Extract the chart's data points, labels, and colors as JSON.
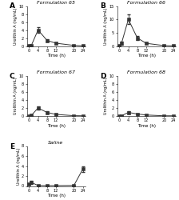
{
  "panels": [
    {
      "label": "A",
      "title": "Formulation 65",
      "x": [
        0,
        1,
        4,
        8,
        12,
        20,
        24
      ],
      "y": [
        0.05,
        0.15,
        4.0,
        1.4,
        0.7,
        0.15,
        0.05
      ],
      "yerr": [
        0.03,
        0.08,
        0.7,
        0.35,
        0.2,
        0.05,
        0.03
      ],
      "ylim": [
        0,
        10
      ],
      "yticks": [
        0,
        2,
        4,
        6,
        8,
        10
      ]
    },
    {
      "label": "B",
      "title": "Formulation 66",
      "x": [
        0,
        1,
        4,
        8,
        12,
        20,
        24
      ],
      "y": [
        0.1,
        1.2,
        10.0,
        3.0,
        1.0,
        0.15,
        0.05
      ],
      "yerr": [
        0.05,
        0.6,
        1.8,
        0.7,
        0.25,
        0.05,
        0.03
      ],
      "ylim": [
        0,
        15
      ],
      "yticks": [
        0,
        5,
        10,
        15
      ]
    },
    {
      "label": "C",
      "title": "Formulation 67",
      "x": [
        0,
        1,
        4,
        8,
        12,
        20,
        24
      ],
      "y": [
        0.05,
        0.15,
        2.0,
        0.9,
        0.4,
        0.08,
        0.05
      ],
      "yerr": [
        0.02,
        0.08,
        0.35,
        0.25,
        0.12,
        0.04,
        0.02
      ],
      "ylim": [
        0,
        10
      ],
      "yticks": [
        0,
        2,
        4,
        6,
        8,
        10
      ]
    },
    {
      "label": "D",
      "title": "Formulation 68",
      "x": [
        0,
        1,
        4,
        8,
        12,
        20,
        24
      ],
      "y": [
        0.05,
        0.08,
        0.9,
        0.5,
        0.25,
        0.05,
        0.05
      ],
      "yerr": [
        0.02,
        0.04,
        0.25,
        0.12,
        0.08,
        0.02,
        0.02
      ],
      "ylim": [
        0,
        10
      ],
      "yticks": [
        0,
        2,
        4,
        6,
        8,
        10
      ]
    },
    {
      "label": "E",
      "title": "Saline",
      "x": [
        0,
        1,
        4,
        8,
        12,
        20,
        24
      ],
      "y": [
        0.4,
        0.7,
        0.1,
        0.08,
        0.08,
        0.12,
        3.4
      ],
      "yerr": [
        0.12,
        0.35,
        0.04,
        0.03,
        0.03,
        0.04,
        0.55
      ],
      "ylim": [
        0,
        8
      ],
      "yticks": [
        0,
        2,
        4,
        6,
        8
      ]
    }
  ],
  "xlabel": "Time (h)",
  "ylabel": "Urolithin A (ng/mL)",
  "xticks": [
    0,
    4,
    8,
    12,
    20,
    24
  ],
  "line_color": "#333333",
  "marker": "s",
  "markersize": 2.5,
  "linewidth": 0.7,
  "capsize": 1.5,
  "elinewidth": 0.6
}
